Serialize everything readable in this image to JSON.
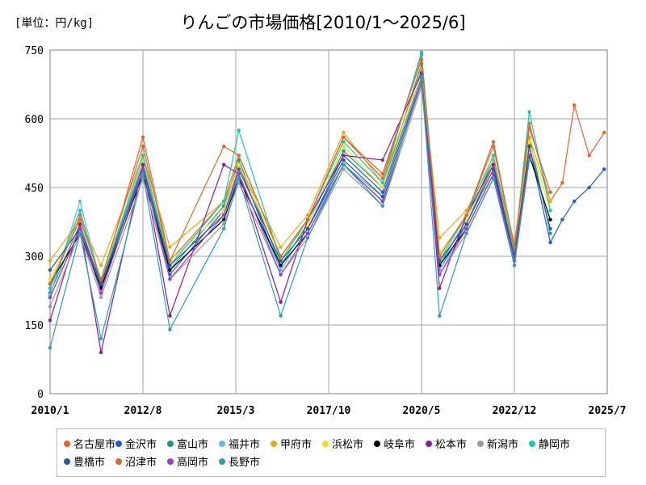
{
  "header": {
    "unit": "[単位：円/kg]",
    "title": "りんごの市場価格[2010/1～2025/6]"
  },
  "chart_data": {
    "type": "line",
    "title": "りんごの市場価格[2010/1～2025/6]",
    "ylabel": "[単位：円/kg]",
    "xlabel": "",
    "ylim": [
      0,
      750
    ],
    "yticks": [
      0,
      150,
      300,
      450,
      600,
      750
    ],
    "xlim": [
      "2010/1",
      "2025/7"
    ],
    "xticks": [
      "2010/1",
      "2012/8",
      "2015/3",
      "2017/10",
      "2020/5",
      "2022/12",
      "2025/7"
    ],
    "grid": true,
    "legend_position": "bottom",
    "series": [
      {
        "name": "名古屋市",
        "color": "#e8622a",
        "x": [
          "2010/1",
          "2010/11",
          "2011/6",
          "2012/8",
          "2013/5",
          "2014/11",
          "2015/4",
          "2016/6",
          "2017/3",
          "2018/3",
          "2019/4",
          "2020/5",
          "2020/11",
          "2021/8",
          "2022/5",
          "2022/12",
          "2023/5",
          "2023/12",
          "2024/4",
          "2024/8",
          "2025/1",
          "2025/6"
        ],
        "values": [
          230,
          390,
          240,
          560,
          290,
          420,
          520,
          300,
          380,
          560,
          470,
          740,
          300,
          390,
          540,
          320,
          590,
          420,
          460,
          630,
          520,
          570
        ]
      },
      {
        "name": "金沢市",
        "color": "#1a5fd6",
        "x": [
          "2010/1",
          "2010/11",
          "2011/6",
          "2012/8",
          "2013/5",
          "2014/11",
          "2015/4",
          "2016/6",
          "2017/3",
          "2018/3",
          "2019/4",
          "2020/5",
          "2020/11",
          "2021/8",
          "2022/5",
          "2022/12",
          "2023/5",
          "2023/12",
          "2024/4",
          "2024/8",
          "2025/1",
          "2025/6"
        ],
        "values": [
          210,
          360,
          230,
          500,
          260,
          400,
          500,
          270,
          360,
          520,
          440,
          700,
          270,
          370,
          500,
          290,
          540,
          330,
          380,
          420,
          450,
          490
        ]
      },
      {
        "name": "富山市",
        "color": "#1a9a7a",
        "x": [
          "2010/1",
          "2010/11",
          "2011/6",
          "2012/8",
          "2013/5",
          "2014/11",
          "2015/4",
          "2016/6",
          "2017/3",
          "2018/3",
          "2019/4",
          "2020/5",
          "2020/11",
          "2021/8",
          "2022/5",
          "2022/12",
          "2023/5",
          "2023/12"
        ],
        "values": [
          220,
          370,
          235,
          510,
          270,
          410,
          510,
          280,
          370,
          530,
          450,
          720,
          280,
          380,
          510,
          300,
          560,
          350
        ]
      },
      {
        "name": "福井市",
        "color": "#5bbce8",
        "x": [
          "2010/1",
          "2010/11",
          "2011/6",
          "2012/8",
          "2013/5",
          "2014/11",
          "2015/4",
          "2016/6",
          "2017/3",
          "2018/3",
          "2019/4",
          "2020/5",
          "2020/11",
          "2021/8",
          "2022/5",
          "2022/12",
          "2023/5"
        ],
        "values": [
          215,
          420,
          240,
          490,
          270,
          380,
          480,
          270,
          360,
          500,
          430,
          690,
          270,
          360,
          480,
          300,
          520
        ]
      },
      {
        "name": "甲府市",
        "color": "#e8a81a",
        "x": [
          "2010/1",
          "2010/11",
          "2011/6",
          "2012/8",
          "2013/5",
          "2014/11",
          "2015/4",
          "2016/6",
          "2017/3",
          "2018/3",
          "2019/4",
          "2020/5",
          "2020/11",
          "2021/8",
          "2022/5",
          "2022/12",
          "2023/5",
          "2023/12"
        ],
        "values": [
          290,
          380,
          280,
          520,
          320,
          420,
          500,
          320,
          390,
          570,
          460,
          710,
          340,
          400,
          510,
          330,
          560,
          420
        ]
      },
      {
        "name": "浜松市",
        "color": "#f0e020",
        "x": [
          "2010/1",
          "2010/11",
          "2011/6",
          "2012/8",
          "2013/5",
          "2014/11",
          "2015/4",
          "2016/6",
          "2017/3",
          "2018/3",
          "2019/4",
          "2020/5",
          "2020/11",
          "2021/8",
          "2022/5",
          "2022/12",
          "2023/5",
          "2023/12"
        ],
        "values": [
          250,
          380,
          250,
          510,
          290,
          400,
          500,
          300,
          370,
          540,
          450,
          700,
          310,
          380,
          500,
          310,
          550,
          400
        ]
      },
      {
        "name": "岐阜市",
        "color": "#000000",
        "x": [
          "2010/1",
          "2010/11",
          "2011/6",
          "2012/8",
          "2013/5",
          "2014/11",
          "2015/4",
          "2016/6",
          "2017/3",
          "2018/3",
          "2019/4",
          "2020/5",
          "2020/11",
          "2021/8",
          "2022/5",
          "2022/12",
          "2023/5",
          "2023/12"
        ],
        "values": [
          240,
          350,
          230,
          480,
          270,
          380,
          470,
          280,
          350,
          500,
          420,
          680,
          280,
          360,
          480,
          300,
          520,
          380
        ]
      },
      {
        "name": "松本市",
        "color": "#8a1a9a",
        "x": [
          "2010/1",
          "2010/11",
          "2011/6",
          "2012/8",
          "2013/5",
          "2014/11",
          "2015/4",
          "2016/6",
          "2017/3",
          "2018/3",
          "2019/4",
          "2020/5",
          "2020/11",
          "2021/8",
          "2022/5",
          "2022/12",
          "2023/5"
        ],
        "values": [
          160,
          370,
          90,
          500,
          170,
          500,
          480,
          200,
          380,
          520,
          510,
          700,
          230,
          390,
          500,
          300,
          540
        ]
      },
      {
        "name": "新潟市",
        "color": "#9a9a9a",
        "x": [
          "2010/1",
          "2010/11",
          "2011/6",
          "2012/8",
          "2013/5",
          "2014/11",
          "2015/4",
          "2016/6",
          "2017/3",
          "2018/3",
          "2019/4",
          "2020/5",
          "2020/11",
          "2021/8",
          "2022/5",
          "2022/12",
          "2023/5"
        ],
        "values": [
          190,
          350,
          210,
          470,
          250,
          370,
          460,
          260,
          340,
          490,
          410,
          670,
          260,
          350,
          470,
          290,
          510
        ]
      },
      {
        "name": "静岡市",
        "color": "#1ac8b0",
        "x": [
          "2010/1",
          "2010/11",
          "2011/6",
          "2012/8",
          "2013/5",
          "2014/11",
          "2015/4",
          "2016/6",
          "2017/3",
          "2018/3",
          "2019/4",
          "2020/5",
          "2020/11",
          "2021/8",
          "2022/5",
          "2022/12",
          "2023/5",
          "2023/12"
        ],
        "values": [
          230,
          400,
          240,
          520,
          280,
          420,
          575,
          290,
          380,
          550,
          460,
          745,
          290,
          390,
          520,
          310,
          615,
          400
        ]
      },
      {
        "name": "豊橋市",
        "color": "#2a5a9a",
        "x": [
          "2010/1",
          "2010/11",
          "2011/6",
          "2012/8",
          "2013/5",
          "2014/11",
          "2015/4",
          "2016/6",
          "2017/3",
          "2018/3",
          "2019/4",
          "2020/5",
          "2020/11",
          "2021/8",
          "2022/5",
          "2022/12",
          "2023/5",
          "2023/12"
        ],
        "values": [
          270,
          360,
          240,
          490,
          280,
          390,
          490,
          290,
          360,
          510,
          430,
          690,
          290,
          370,
          490,
          300,
          540,
          360
        ]
      },
      {
        "name": "沼津市",
        "color": "#d86a2a",
        "x": [
          "2010/1",
          "2010/11",
          "2011/6",
          "2012/8",
          "2013/5",
          "2014/11",
          "2015/4",
          "2016/6",
          "2017/3",
          "2018/3",
          "2019/4",
          "2020/5",
          "2020/11",
          "2021/8",
          "2022/5",
          "2022/12",
          "2023/5",
          "2023/12"
        ],
        "values": [
          240,
          380,
          250,
          540,
          290,
          540,
          520,
          300,
          380,
          560,
          480,
          730,
          300,
          390,
          550,
          320,
          580,
          440
        ]
      },
      {
        "name": "高岡市",
        "color": "#a23ad8",
        "x": [
          "2010/1",
          "2010/11",
          "2011/6",
          "2012/8",
          "2013/5",
          "2014/11",
          "2015/4",
          "2016/6",
          "2017/3",
          "2018/3",
          "2019/4",
          "2020/5",
          "2020/11",
          "2021/8",
          "2022/5",
          "2022/12",
          "2023/5"
        ],
        "values": [
          210,
          360,
          220,
          490,
          250,
          390,
          480,
          260,
          350,
          500,
          420,
          680,
          260,
          360,
          480,
          290,
          520
        ]
      },
      {
        "name": "長野市",
        "color": "#2aa0b0",
        "x": [
          "2010/1",
          "2010/11",
          "2011/6",
          "2012/8",
          "2013/5",
          "2014/11",
          "2015/4",
          "2016/6",
          "2017/3",
          "2018/3",
          "2019/4",
          "2020/5",
          "2020/11",
          "2021/8",
          "2022/5",
          "2022/12",
          "2023/5"
        ],
        "values": [
          100,
          350,
          120,
          480,
          140,
          360,
          470,
          170,
          340,
          500,
          410,
          690,
          170,
          350,
          470,
          280,
          510
        ]
      }
    ]
  }
}
